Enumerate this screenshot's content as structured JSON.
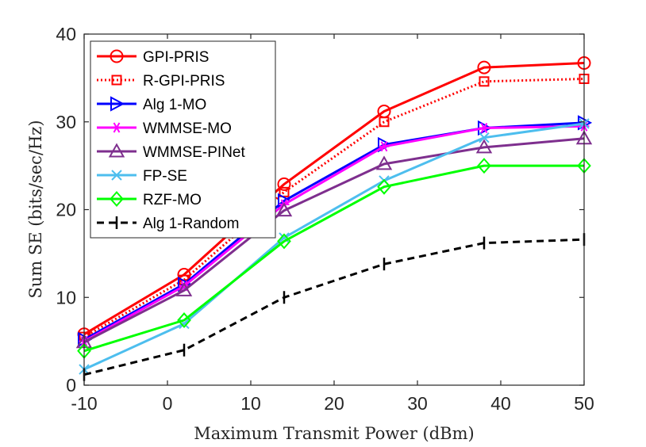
{
  "chart_data": {
    "type": "line",
    "title": "",
    "xlabel": "Maximum Transmit Power (dBm)",
    "ylabel": "Sum SE (bits/sec/Hz)",
    "xlim": [
      -10,
      50
    ],
    "ylim": [
      0,
      40
    ],
    "x": [
      -10,
      2,
      14,
      26,
      38,
      50
    ],
    "xticks": [
      "-10",
      "0",
      "10",
      "20",
      "30",
      "40",
      "50"
    ],
    "yticks": [
      "0",
      "10",
      "20",
      "30",
      "40"
    ],
    "grid": false,
    "legend_position": "top-left",
    "series": [
      {
        "name": "GPI-PRIS",
        "color": "#ff0000",
        "dash": "solid",
        "marker": "circle",
        "values": [
          5.8,
          12.6,
          22.9,
          31.2,
          36.2,
          36.7
        ]
      },
      {
        "name": "R-GPI-PRIS",
        "color": "#ff0000",
        "dash": "dotted",
        "marker": "square",
        "values": [
          5.5,
          12.0,
          22.0,
          30.0,
          34.6,
          34.9
        ]
      },
      {
        "name": "Alg 1-MO",
        "color": "#0000ff",
        "dash": "solid",
        "marker": "triangle-right",
        "values": [
          5.2,
          11.5,
          21.0,
          27.4,
          29.3,
          29.9
        ]
      },
      {
        "name": "WMMSE-MO",
        "color": "#ff00ff",
        "dash": "solid",
        "marker": "asterisk",
        "values": [
          5.0,
          11.3,
          20.6,
          27.2,
          29.3,
          29.5
        ]
      },
      {
        "name": "WMMSE-PINet",
        "color": "#7e2f8e",
        "dash": "solid",
        "marker": "triangle-up",
        "values": [
          4.9,
          10.8,
          19.9,
          25.2,
          27.1,
          28.1
        ]
      },
      {
        "name": "FP-SE",
        "color": "#4dbeee",
        "dash": "solid",
        "marker": "x",
        "values": [
          1.8,
          7.0,
          16.8,
          23.3,
          28.2,
          29.8
        ]
      },
      {
        "name": "RZF-MO",
        "color": "#00ff00",
        "dash": "solid",
        "marker": "diamond",
        "values": [
          3.9,
          7.4,
          16.4,
          22.6,
          25.0,
          25.0
        ]
      },
      {
        "name": "Alg 1-Random",
        "color": "#000000",
        "dash": "dashed",
        "marker": "vbar",
        "values": [
          1.2,
          4.0,
          10.0,
          13.8,
          16.2,
          16.6
        ]
      }
    ]
  }
}
